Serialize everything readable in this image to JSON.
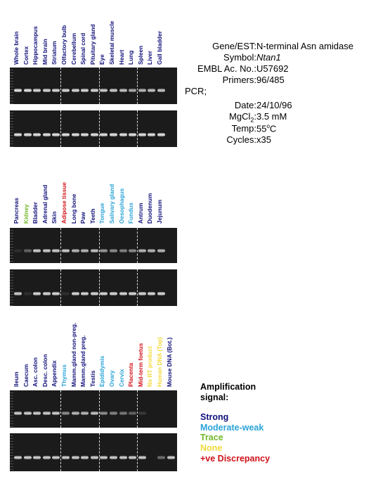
{
  "colors": {
    "strong": "#10107a",
    "moderate": "#2aa3d8",
    "trace": "#72b82a",
    "none": "#f2da3a",
    "discrepancy": "#d0131a"
  },
  "info": {
    "gene_key": "Gene/EST:",
    "gene_val": "N-terminal Asn amidase",
    "symbol_key": "Symbol:",
    "symbol_val": "Ntan1",
    "embl_key": "EMBL Ac. No.:",
    "embl_val": "U57692",
    "primers_key": "Primers:",
    "primers_val": "96/485",
    "pcr_label": "PCR;",
    "date_key": "Date:",
    "date_val": "24/10/96",
    "mgcl_key": "MgCl",
    "mgcl_sub": "2",
    "mgcl_colon": ":",
    "mgcl_val": "3.5 mM",
    "temp_key": "Temp:",
    "temp_val": "55",
    "temp_sup": "o",
    "temp_unit": "C",
    "cycles_key": "Cycles:",
    "cycles_val": "x35"
  },
  "legend": {
    "title1": "Amplification",
    "title2": "signal:",
    "strong": "Strong",
    "moderate": "Moderate-weak",
    "trace": "Trace",
    "none": "None",
    "discrepancy": "+ve Discrepancy"
  },
  "panels": [
    {
      "lanes": [
        {
          "label": "Whole brain",
          "signal": "strong",
          "rt": 0.95,
          "ctrl": 0.95
        },
        {
          "label": "Cortex",
          "signal": "strong",
          "rt": 0.95,
          "ctrl": 0.95
        },
        {
          "label": "Hippocampus",
          "signal": "strong",
          "rt": 0.9,
          "ctrl": 0.95
        },
        {
          "label": "Mid brain",
          "signal": "strong",
          "rt": 0.9,
          "ctrl": 0.95
        },
        {
          "label": "Striatum",
          "signal": "strong",
          "rt": 0.9,
          "ctrl": 0.95
        },
        {
          "label": "Olfactory bulb",
          "signal": "strong",
          "rt": 0.9,
          "ctrl": 0.95
        },
        {
          "label": "Cerebellum",
          "signal": "strong",
          "rt": 0.9,
          "ctrl": 0.95
        },
        {
          "label": "Spinal cord",
          "signal": "strong",
          "rt": 0.9,
          "ctrl": 0.95
        },
        {
          "label": "Pituitary gland",
          "signal": "strong",
          "rt": 0.9,
          "ctrl": 0.95
        },
        {
          "label": "Eye",
          "signal": "strong",
          "rt": 0.85,
          "ctrl": 0.95
        },
        {
          "label": "Skeletal muscle",
          "signal": "strong",
          "rt": 0.85,
          "ctrl": 0.95
        },
        {
          "label": "Heart",
          "signal": "strong",
          "rt": 0.8,
          "ctrl": 0.95
        },
        {
          "label": "Lung",
          "signal": "strong",
          "rt": 0.7,
          "ctrl": 0.95
        },
        {
          "label": "Spleen",
          "signal": "strong",
          "rt": 0.75,
          "ctrl": 0.95
        },
        {
          "label": "Liver",
          "signal": "strong",
          "rt": 0.8,
          "ctrl": 0.95
        },
        {
          "label": "Gall bladder",
          "signal": "strong",
          "rt": 0.8,
          "ctrl": 0.95
        }
      ]
    },
    {
      "lanes": [
        {
          "label": "Pancreas",
          "signal": "strong",
          "rt": 0.1,
          "ctrl": 0.85
        },
        {
          "label": "Kidney",
          "signal": "trace",
          "rt": 0.35,
          "ctrl": 0.1
        },
        {
          "label": "Bladder",
          "signal": "strong",
          "rt": 0.85,
          "ctrl": 0.9
        },
        {
          "label": "Adrenal gland",
          "signal": "strong",
          "rt": 0.85,
          "ctrl": 0.9
        },
        {
          "label": "Skin",
          "signal": "strong",
          "rt": 0.85,
          "ctrl": 0.9
        },
        {
          "label": "Adipose tissue",
          "signal": "discrepancy",
          "rt": 0.85,
          "ctrl": 0.1
        },
        {
          "label": "Long bone",
          "signal": "strong",
          "rt": 0.75,
          "ctrl": 0.9
        },
        {
          "label": "Paw",
          "signal": "strong",
          "rt": 0.75,
          "ctrl": 0.9
        },
        {
          "label": "Teeth",
          "signal": "strong",
          "rt": 0.8,
          "ctrl": 0.9
        },
        {
          "label": "Tongue",
          "signal": "moderate",
          "rt": 0.6,
          "ctrl": 0.9
        },
        {
          "label": "Salivary gland",
          "signal": "moderate",
          "rt": 0.55,
          "ctrl": 0.9
        },
        {
          "label": "Oesophagus",
          "signal": "moderate",
          "rt": 0.5,
          "ctrl": 0.9
        },
        {
          "label": "Fundus",
          "signal": "moderate",
          "rt": 0.55,
          "ctrl": 0.9
        },
        {
          "label": "Antrum",
          "signal": "strong",
          "rt": 0.75,
          "ctrl": 0.9
        },
        {
          "label": "Duodenum",
          "signal": "strong",
          "rt": 0.75,
          "ctrl": 0.9
        },
        {
          "label": "Jejunum",
          "signal": "strong",
          "rt": 0.75,
          "ctrl": 0.9
        }
      ]
    },
    {
      "lanes": [
        {
          "label": "Ileum",
          "signal": "strong",
          "rt": 0.85,
          "ctrl": 0.85
        },
        {
          "label": "Caecum",
          "signal": "strong",
          "rt": 0.85,
          "ctrl": 0.85
        },
        {
          "label": "Asc. colon",
          "signal": "strong",
          "rt": 0.85,
          "ctrl": 0.85
        },
        {
          "label": "Desc. colon",
          "signal": "strong",
          "rt": 0.85,
          "ctrl": 0.85
        },
        {
          "label": "Appendix",
          "signal": "strong",
          "rt": 0.85,
          "ctrl": 0.85
        },
        {
          "label": "Thymus",
          "signal": "moderate",
          "rt": 0.55,
          "ctrl": 0.85
        },
        {
          "label": "Mamm.gland non-preg.",
          "signal": "strong",
          "rt": 0.75,
          "ctrl": 0.85
        },
        {
          "label": "Mamm.gland preg.",
          "signal": "strong",
          "rt": 0.75,
          "ctrl": 0.85
        },
        {
          "label": "Testis",
          "signal": "strong",
          "rt": 0.8,
          "ctrl": 0.85
        },
        {
          "label": "Epididymis",
          "signal": "moderate",
          "rt": 0.55,
          "ctrl": 0.85
        },
        {
          "label": "Ovary",
          "signal": "moderate",
          "rt": 0.5,
          "ctrl": 0.85
        },
        {
          "label": "Cervix",
          "signal": "moderate",
          "rt": 0.45,
          "ctrl": 0.85
        },
        {
          "label": "Placenta",
          "signal": "discrepancy",
          "rt": 0.35,
          "ctrl": 0.85
        },
        {
          "label": "Mid-term foetus",
          "signal": "discrepancy",
          "rt": 0.15,
          "ctrl": 0.85
        },
        {
          "label": "No RT product",
          "signal": "none",
          "rt": 0.0,
          "ctrl": 0.0
        },
        {
          "label": "Human DNA (Top)",
          "signal": "none",
          "rt": 0.0,
          "ctrl": 0.4
        },
        {
          "label": "Mouse DNA (Bot.)",
          "signal": "strong",
          "rt": 0.0,
          "ctrl": 0.85
        }
      ]
    }
  ]
}
